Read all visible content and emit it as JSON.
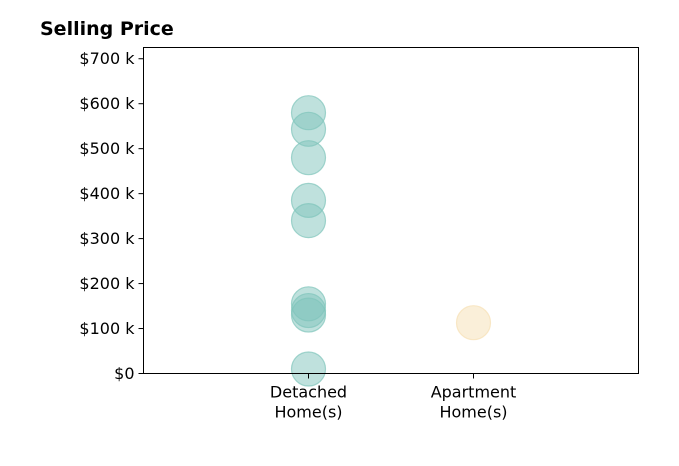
{
  "chart_data": {
    "type": "scatter",
    "title": "Selling Price",
    "xlabel": "",
    "ylabel": "",
    "categories": [
      "Detached\nHome(s)",
      "Apartment\nHome(s)"
    ],
    "xlim": [
      -1,
      2
    ],
    "ylim": [
      0,
      725000
    ],
    "y_ticks": [
      0,
      100000,
      200000,
      300000,
      400000,
      500000,
      600000,
      700000
    ],
    "y_tick_labels": [
      "$0",
      "$100 k",
      "$200 k",
      "$300 k",
      "$400 k",
      "$500 k",
      "$600 k",
      "$700 k"
    ],
    "grid": false,
    "series": [
      {
        "category": "Detached\nHome(s)",
        "values": [
          580000,
          543000,
          480000,
          385000,
          340000,
          155000,
          140000,
          130000,
          10000
        ],
        "color": "#7fc4bb"
      },
      {
        "category": "Apartment\nHome(s)",
        "values": [
          113000
        ],
        "color": "#f6dfb3"
      }
    ]
  }
}
